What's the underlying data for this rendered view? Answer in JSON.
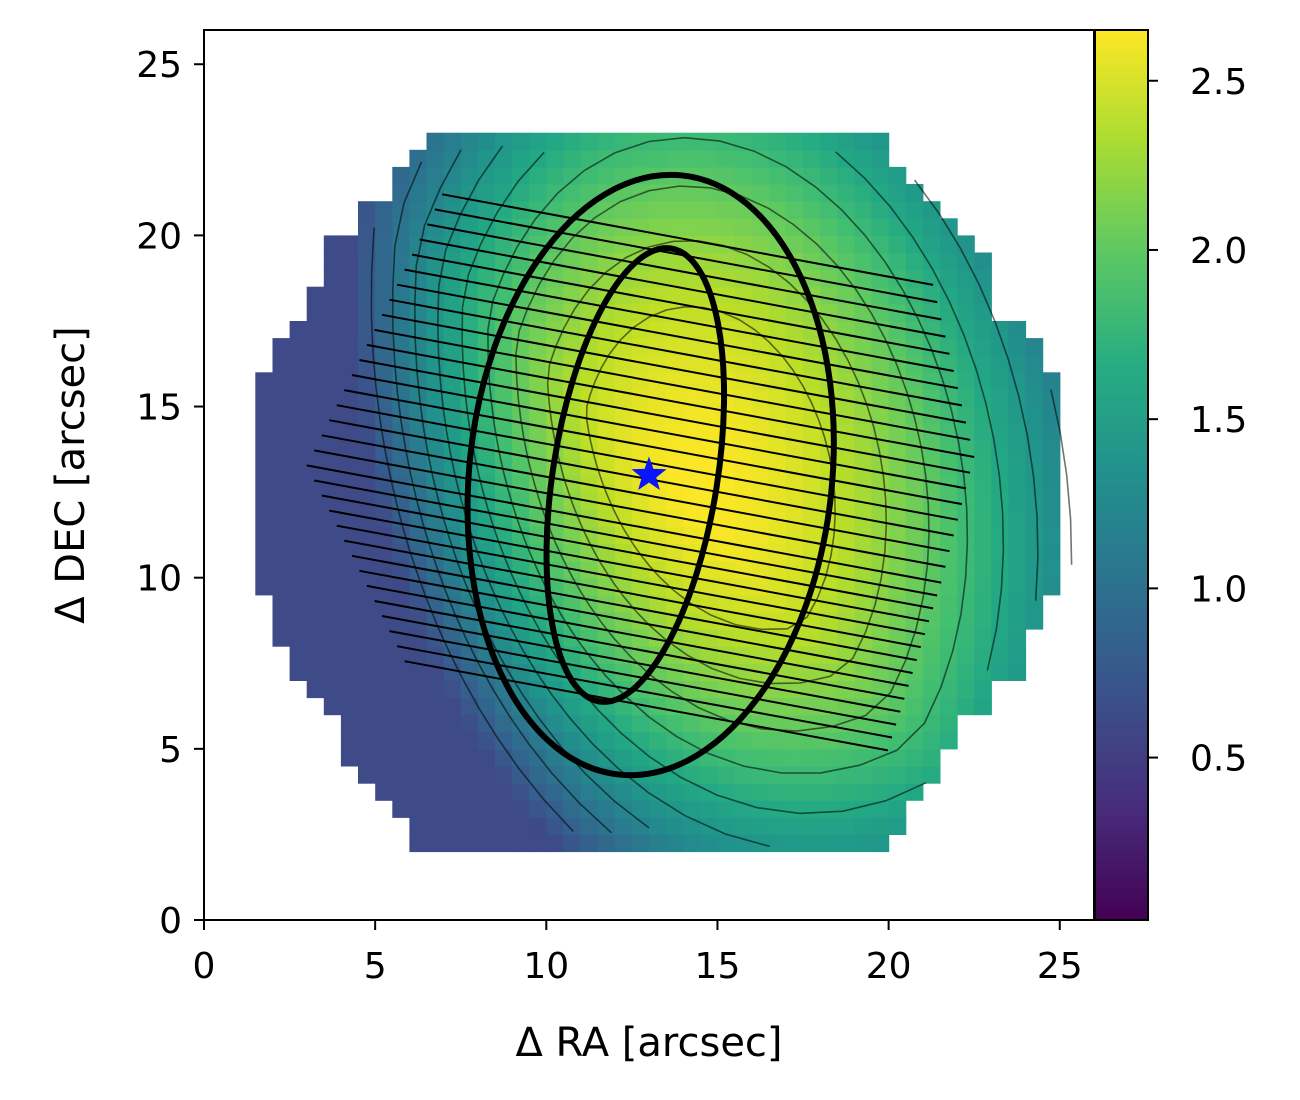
{
  "chart_data": {
    "type": "heatmap",
    "title": "",
    "xlabel": "Δ RA  [arcsec]",
    "ylabel": "Δ DEC [arcsec]",
    "xlim": [
      0,
      26
    ],
    "ylim": [
      0,
      26
    ],
    "xticks": [
      0,
      5,
      10,
      15,
      20,
      25
    ],
    "yticks": [
      0,
      5,
      10,
      15,
      20,
      25
    ],
    "grid": false,
    "colormap": "viridis",
    "colorbar": {
      "range": [
        0.02,
        2.65
      ],
      "ticks": [
        0.5,
        1.0,
        1.5,
        2.0,
        2.5
      ],
      "tick_labels": [
        "0.5",
        "1.0",
        "1.5",
        "2.0",
        "2.5"
      ]
    },
    "field": {
      "shape": "hexagon",
      "center": [
        13.1,
        12.6
      ],
      "radius": 11.4,
      "peak_position": [
        13.0,
        13.0
      ],
      "peak_value": 2.6,
      "edge_value": 0.6,
      "gradient_direction": "brighter toward lower-right"
    },
    "contours": {
      "levels": [
        0.8,
        1.0,
        1.2,
        1.4,
        1.6,
        1.8,
        2.0,
        2.2,
        2.4
      ],
      "color": "#000000"
    },
    "star_marker": {
      "x": 13.0,
      "y": 13.0,
      "color": "#0a14ff",
      "symbol": "star"
    },
    "ellipses": [
      {
        "name": "outer",
        "cx": 13.05,
        "cy": 13.0,
        "semi_major": 8.8,
        "semi_minor": 5.3,
        "tilt_deg": 6
      },
      {
        "name": "inner",
        "cx": 12.6,
        "cy": 13.0,
        "semi_major": 6.7,
        "semi_minor": 2.4,
        "tilt_deg": 9
      }
    ],
    "slit_lines": {
      "count": 32,
      "x_range": [
        3.0,
        22.5
      ],
      "y_top_start": 21.2,
      "spacing": 0.44,
      "drop_across": 3.6
    }
  }
}
